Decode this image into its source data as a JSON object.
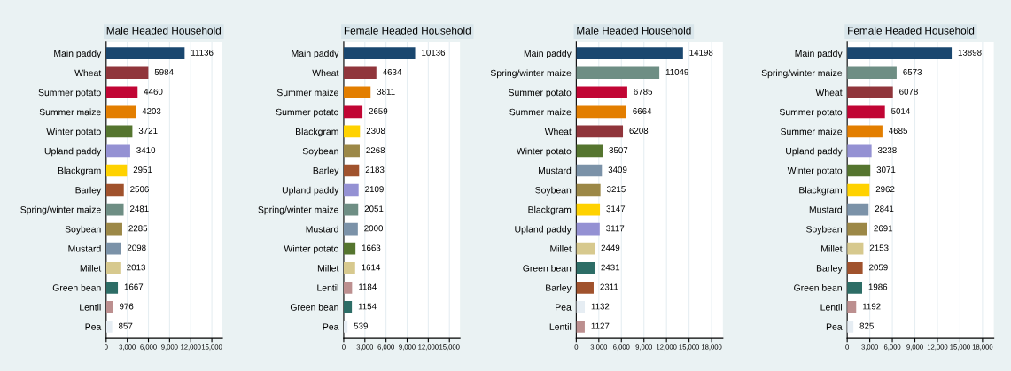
{
  "chart_data": [
    {
      "type": "bar",
      "orientation": "horizontal",
      "title": "Male Headed Household",
      "categories": [
        "Main paddy",
        "Wheat",
        "Summer potato",
        "Summer maize",
        "Winter potato",
        "Upland paddy",
        "Blackgram",
        "Barley",
        "Spring/winter maize",
        "Soybean",
        "Mustard",
        "Millet",
        "Green bean",
        "Lentil",
        "Pea"
      ],
      "values": [
        11136,
        5984,
        4460,
        4203,
        3721,
        3410,
        2951,
        2506,
        2481,
        2285,
        2098,
        2013,
        1667,
        976,
        857
      ],
      "colors": [
        "#1a476f",
        "#90353b",
        "#c10534",
        "#e37e00",
        "#55752f",
        "#9491d3",
        "#ffd200",
        "#a0522d",
        "#6e8e84",
        "#9c8847",
        "#7b92a8",
        "#d7c98e",
        "#2d6d66",
        "#bc8f8f",
        "#e6edf3"
      ],
      "xlim": [
        0,
        16500
      ],
      "xticks": [
        0,
        {
          "value": 3000,
          "label": "3,000"
        },
        {
          "value": 6000,
          "label": "6,000"
        },
        {
          "value": 9000,
          "label": "9,000"
        },
        {
          "value": 12000,
          "label": "12,000"
        },
        {
          "value": 15000,
          "label": "15,000"
        }
      ],
      "grid": "x",
      "data_labels": true
    },
    {
      "type": "bar",
      "orientation": "horizontal",
      "title": "Female Headed Household",
      "categories": [
        "Main paddy",
        "Wheat",
        "Summer maize",
        "Summer potato",
        "Blackgram",
        "Soybean",
        "Barley",
        "Upland paddy",
        "Spring/winter maize",
        "Mustard",
        "Winter potato",
        "Millet",
        "Lentil",
        "Green bean",
        "Pea"
      ],
      "values": [
        10136,
        4634,
        3811,
        2659,
        2308,
        2268,
        2183,
        2109,
        2051,
        2000,
        1663,
        1614,
        1184,
        1154,
        539
      ],
      "colors": [
        "#1a476f",
        "#90353b",
        "#e37e00",
        "#c10534",
        "#ffd200",
        "#9c8847",
        "#a0522d",
        "#9491d3",
        "#6e8e84",
        "#7b92a8",
        "#55752f",
        "#d7c98e",
        "#bc8f8f",
        "#2d6d66",
        "#e6edf3"
      ],
      "xlim": [
        0,
        16500
      ],
      "xticks": [
        0,
        {
          "value": 3000,
          "label": "3,000"
        },
        {
          "value": 6000,
          "label": "6,000"
        },
        {
          "value": 9000,
          "label": "9,000"
        },
        {
          "value": 12000,
          "label": "12,000"
        },
        {
          "value": 15000,
          "label": "15,000"
        }
      ],
      "grid": "x",
      "data_labels": true
    },
    {
      "type": "bar",
      "orientation": "horizontal",
      "title": "Male Headed Household",
      "categories": [
        "Main paddy",
        "Spring/winter maize",
        "Summer potato",
        "Summer maize",
        "Wheat",
        "Winter potato",
        "Mustard",
        "Soybean",
        "Blackgram",
        "Upland paddy",
        "Millet",
        "Green bean",
        "Barley",
        "Pea",
        "Lentil"
      ],
      "values": [
        14198,
        11049,
        6785,
        6664,
        6208,
        3507,
        3409,
        3215,
        3147,
        3117,
        2449,
        2431,
        2311,
        1132,
        1127
      ],
      "colors": [
        "#1a476f",
        "#6e8e84",
        "#c10534",
        "#e37e00",
        "#90353b",
        "#55752f",
        "#7b92a8",
        "#9c8847",
        "#ffd200",
        "#9491d3",
        "#d7c98e",
        "#2d6d66",
        "#a0522d",
        "#e6edf3",
        "#bc8f8f"
      ],
      "xlim": [
        0,
        19500
      ],
      "xticks": [
        0,
        {
          "value": 3000,
          "label": "3,000"
        },
        {
          "value": 6000,
          "label": "6,000"
        },
        {
          "value": 9000,
          "label": "9,000"
        },
        {
          "value": 12000,
          "label": "12,000"
        },
        {
          "value": 15000,
          "label": "15,000"
        },
        {
          "value": 18000,
          "label": "18,000"
        }
      ],
      "grid": "x",
      "data_labels": true
    },
    {
      "type": "bar",
      "orientation": "horizontal",
      "title": "Female Headed Household",
      "categories": [
        "Main paddy",
        "Spring/winter maize",
        "Wheat",
        "Summer potato",
        "Summer maize",
        "Upland paddy",
        "Winter potato",
        "Blackgram",
        "Mustard",
        "Soybean",
        "Millet",
        "Barley",
        "Green bean",
        "Lentil",
        "Pea"
      ],
      "values": [
        13898,
        6573,
        6078,
        5014,
        4685,
        3238,
        3071,
        2962,
        2841,
        2691,
        2153,
        2059,
        1986,
        1192,
        825
      ],
      "colors": [
        "#1a476f",
        "#6e8e84",
        "#90353b",
        "#c10534",
        "#e37e00",
        "#9491d3",
        "#55752f",
        "#ffd200",
        "#7b92a8",
        "#9c8847",
        "#d7c98e",
        "#a0522d",
        "#2d6d66",
        "#bc8f8f",
        "#e6edf3"
      ],
      "xlim": [
        0,
        19500
      ],
      "xticks": [
        0,
        {
          "value": 3000,
          "label": "3,000"
        },
        {
          "value": 6000,
          "label": "6,000"
        },
        {
          "value": 9000,
          "label": "9,000"
        },
        {
          "value": 12000,
          "label": "12,000"
        },
        {
          "value": 15000,
          "label": "15,000"
        },
        {
          "value": 18000,
          "label": "18,000"
        }
      ],
      "grid": "x",
      "data_labels": true
    }
  ]
}
